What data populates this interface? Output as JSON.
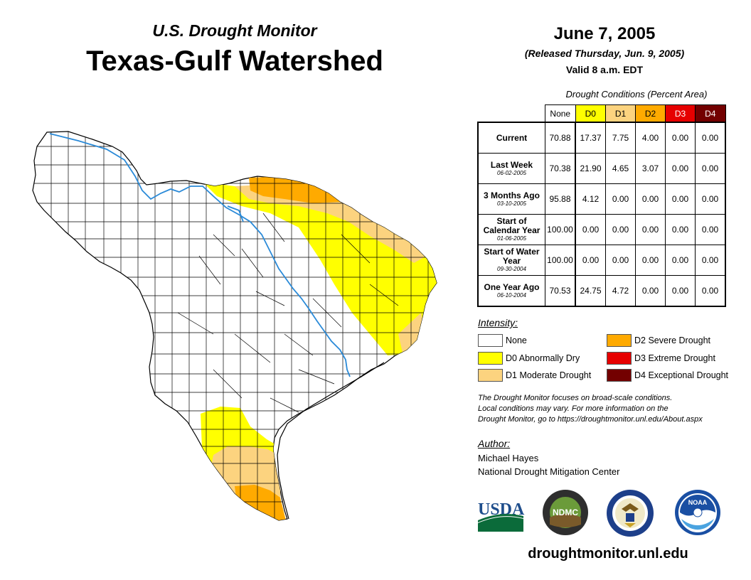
{
  "header": {
    "subtitle": "U.S. Drought Monitor",
    "title": "Texas-Gulf Watershed",
    "date": "June 7, 2005",
    "released": "(Released Thursday, Jun. 9, 2005)",
    "valid": "Valid 8 a.m. EDT"
  },
  "table": {
    "title": "Drought Conditions (Percent Area)",
    "columns": [
      "None",
      "D0",
      "D1",
      "D2",
      "D3",
      "D4"
    ],
    "rows": [
      {
        "label": "Current",
        "sub": "",
        "values": [
          "70.88",
          "17.37",
          "7.75",
          "4.00",
          "0.00",
          "0.00"
        ]
      },
      {
        "label": "Last Week",
        "sub": "06-02-2005",
        "values": [
          "70.38",
          "21.90",
          "4.65",
          "3.07",
          "0.00",
          "0.00"
        ]
      },
      {
        "label": "3 Months Ago",
        "sub": "03-10-2005",
        "values": [
          "95.88",
          "4.12",
          "0.00",
          "0.00",
          "0.00",
          "0.00"
        ]
      },
      {
        "label": "Start of Calendar Year",
        "sub": "01-06-2005",
        "values": [
          "100.00",
          "0.00",
          "0.00",
          "0.00",
          "0.00",
          "0.00"
        ]
      },
      {
        "label": "Start of Water Year",
        "sub": "09-30-2004",
        "values": [
          "100.00",
          "0.00",
          "0.00",
          "0.00",
          "0.00",
          "0.00"
        ]
      },
      {
        "label": "One Year Ago",
        "sub": "06-10-2004",
        "values": [
          "70.53",
          "24.75",
          "4.72",
          "0.00",
          "0.00",
          "0.00"
        ]
      }
    ]
  },
  "legend": {
    "title": "Intensity:",
    "items": [
      {
        "label": "None",
        "color": "#ffffff"
      },
      {
        "label": "D0 Abnormally Dry",
        "color": "#ffff00"
      },
      {
        "label": "D1 Moderate Drought",
        "color": "#fcd37f"
      },
      {
        "label": "D2 Severe Drought",
        "color": "#ffaa00"
      },
      {
        "label": "D3 Extreme Drought",
        "color": "#e60000"
      },
      {
        "label": "D4 Exceptional Drought",
        "color": "#730000"
      }
    ]
  },
  "note": {
    "line1": "The Drought Monitor focuses on broad-scale conditions.",
    "line2": "Local conditions may vary. For more information on the",
    "line3": "Drought Monitor, go to https://droughtmonitor.unl.edu/About.aspx"
  },
  "author": {
    "title": "Author:",
    "name": "Michael Hayes",
    "org": "National Drought Mitigation Center"
  },
  "logos": {
    "usda": "USDA",
    "ndmc": "NDMC",
    "noaa": "NOAA"
  },
  "footer_url": "droughtmonitor.unl.edu",
  "colors": {
    "none": "#ffffff",
    "d0": "#ffff00",
    "d1": "#fcd37f",
    "d2": "#ffaa00",
    "d3": "#e60000",
    "d4": "#730000",
    "river": "#2a8ad8"
  }
}
